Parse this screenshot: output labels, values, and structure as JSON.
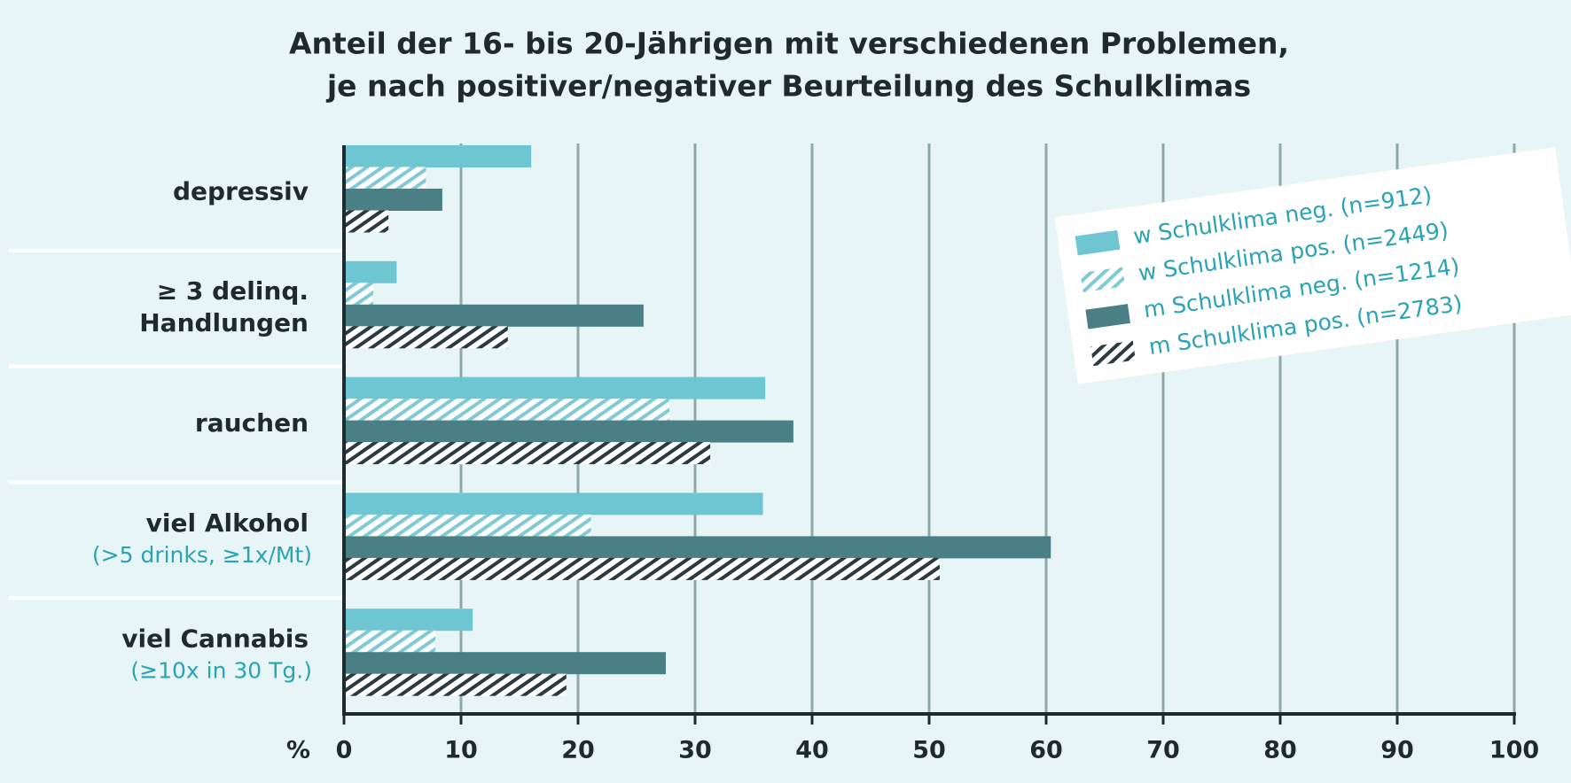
{
  "chart_data": {
    "type": "hbar",
    "title": [
      "Anteil der 16- bis 20-Jährigen mit verschiedenen Problemen,",
      "je nach positiver/negativer Beurteilung des Schulklimas"
    ],
    "categories": [
      {
        "lines": [
          "depressiv"
        ]
      },
      {
        "lines": [
          "≥ 3 delinq.",
          "Handlungen"
        ]
      },
      {
        "lines": [
          "rauchen"
        ]
      },
      {
        "lines": [
          "viel Alkohol"
        ],
        "note": "(>5 drinks, ≥1x/Mt)"
      },
      {
        "lines": [
          "viel Cannabis"
        ],
        "note": "(≥10x in 30 Tg.)"
      }
    ],
    "series": [
      {
        "name": "w Schulklima neg. (n=912)",
        "color": "#6ec6d3",
        "pattern": "solid",
        "values": [
          16,
          4.5,
          36,
          35.8,
          11
        ]
      },
      {
        "name": "w Schulklima pos. (n=2449)",
        "color": "#7fcad5",
        "pattern": "hatch",
        "values": [
          7,
          2.5,
          27.8,
          21.1,
          7.8
        ]
      },
      {
        "name": "m Schulklima neg. (n=1214)",
        "color": "#4a7f85",
        "pattern": "solid",
        "values": [
          8.4,
          25.6,
          38.4,
          60.4,
          27.5
        ]
      },
      {
        "name": "m Schulklima pos. (n=2783)",
        "color": "#2a3a3e",
        "pattern": "hatch",
        "values": [
          3.8,
          14,
          31.3,
          50.9,
          19
        ]
      }
    ],
    "xlabel": "%",
    "xlim": [
      0,
      100
    ],
    "xticks": [
      0,
      10,
      20,
      30,
      40,
      50,
      60,
      70,
      80,
      90,
      100
    ],
    "grid": true
  }
}
